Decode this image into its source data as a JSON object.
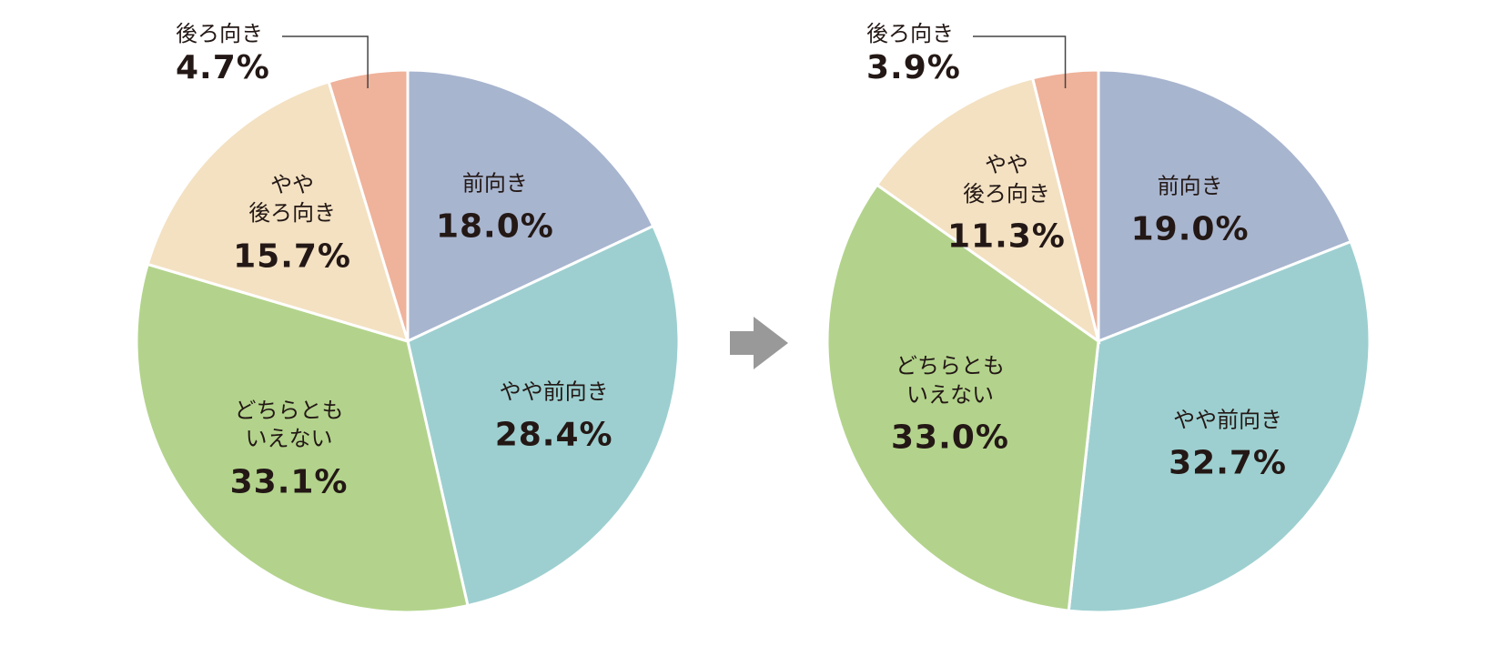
{
  "chart_data": [
    {
      "type": "pie",
      "categories": [
        "前向き",
        "やや前向き",
        "どちらとも\nいえない",
        "やや\n後ろ向き",
        "後ろ向き"
      ],
      "values": [
        18.0,
        28.4,
        33.1,
        15.7,
        4.7
      ],
      "value_labels": [
        "18.0%",
        "28.4%",
        "33.1%",
        "15.7%",
        "4.7%"
      ],
      "colors": [
        "#a8b5cf",
        "#9dcfd0",
        "#b3d38c",
        "#f3e1c2",
        "#efb29a"
      ]
    },
    {
      "type": "pie",
      "categories": [
        "前向き",
        "やや前向き",
        "どちらとも\nいえない",
        "やや\n後ろ向き",
        "後ろ向き"
      ],
      "values": [
        19.0,
        32.7,
        33.0,
        11.3,
        3.9
      ],
      "value_labels": [
        "19.0%",
        "32.7%",
        "33.0%",
        "11.3%",
        "3.9%"
      ],
      "colors": [
        "#a8b5cf",
        "#9dcfd0",
        "#b3d38c",
        "#f3e1c2",
        "#efb29a"
      ]
    }
  ]
}
